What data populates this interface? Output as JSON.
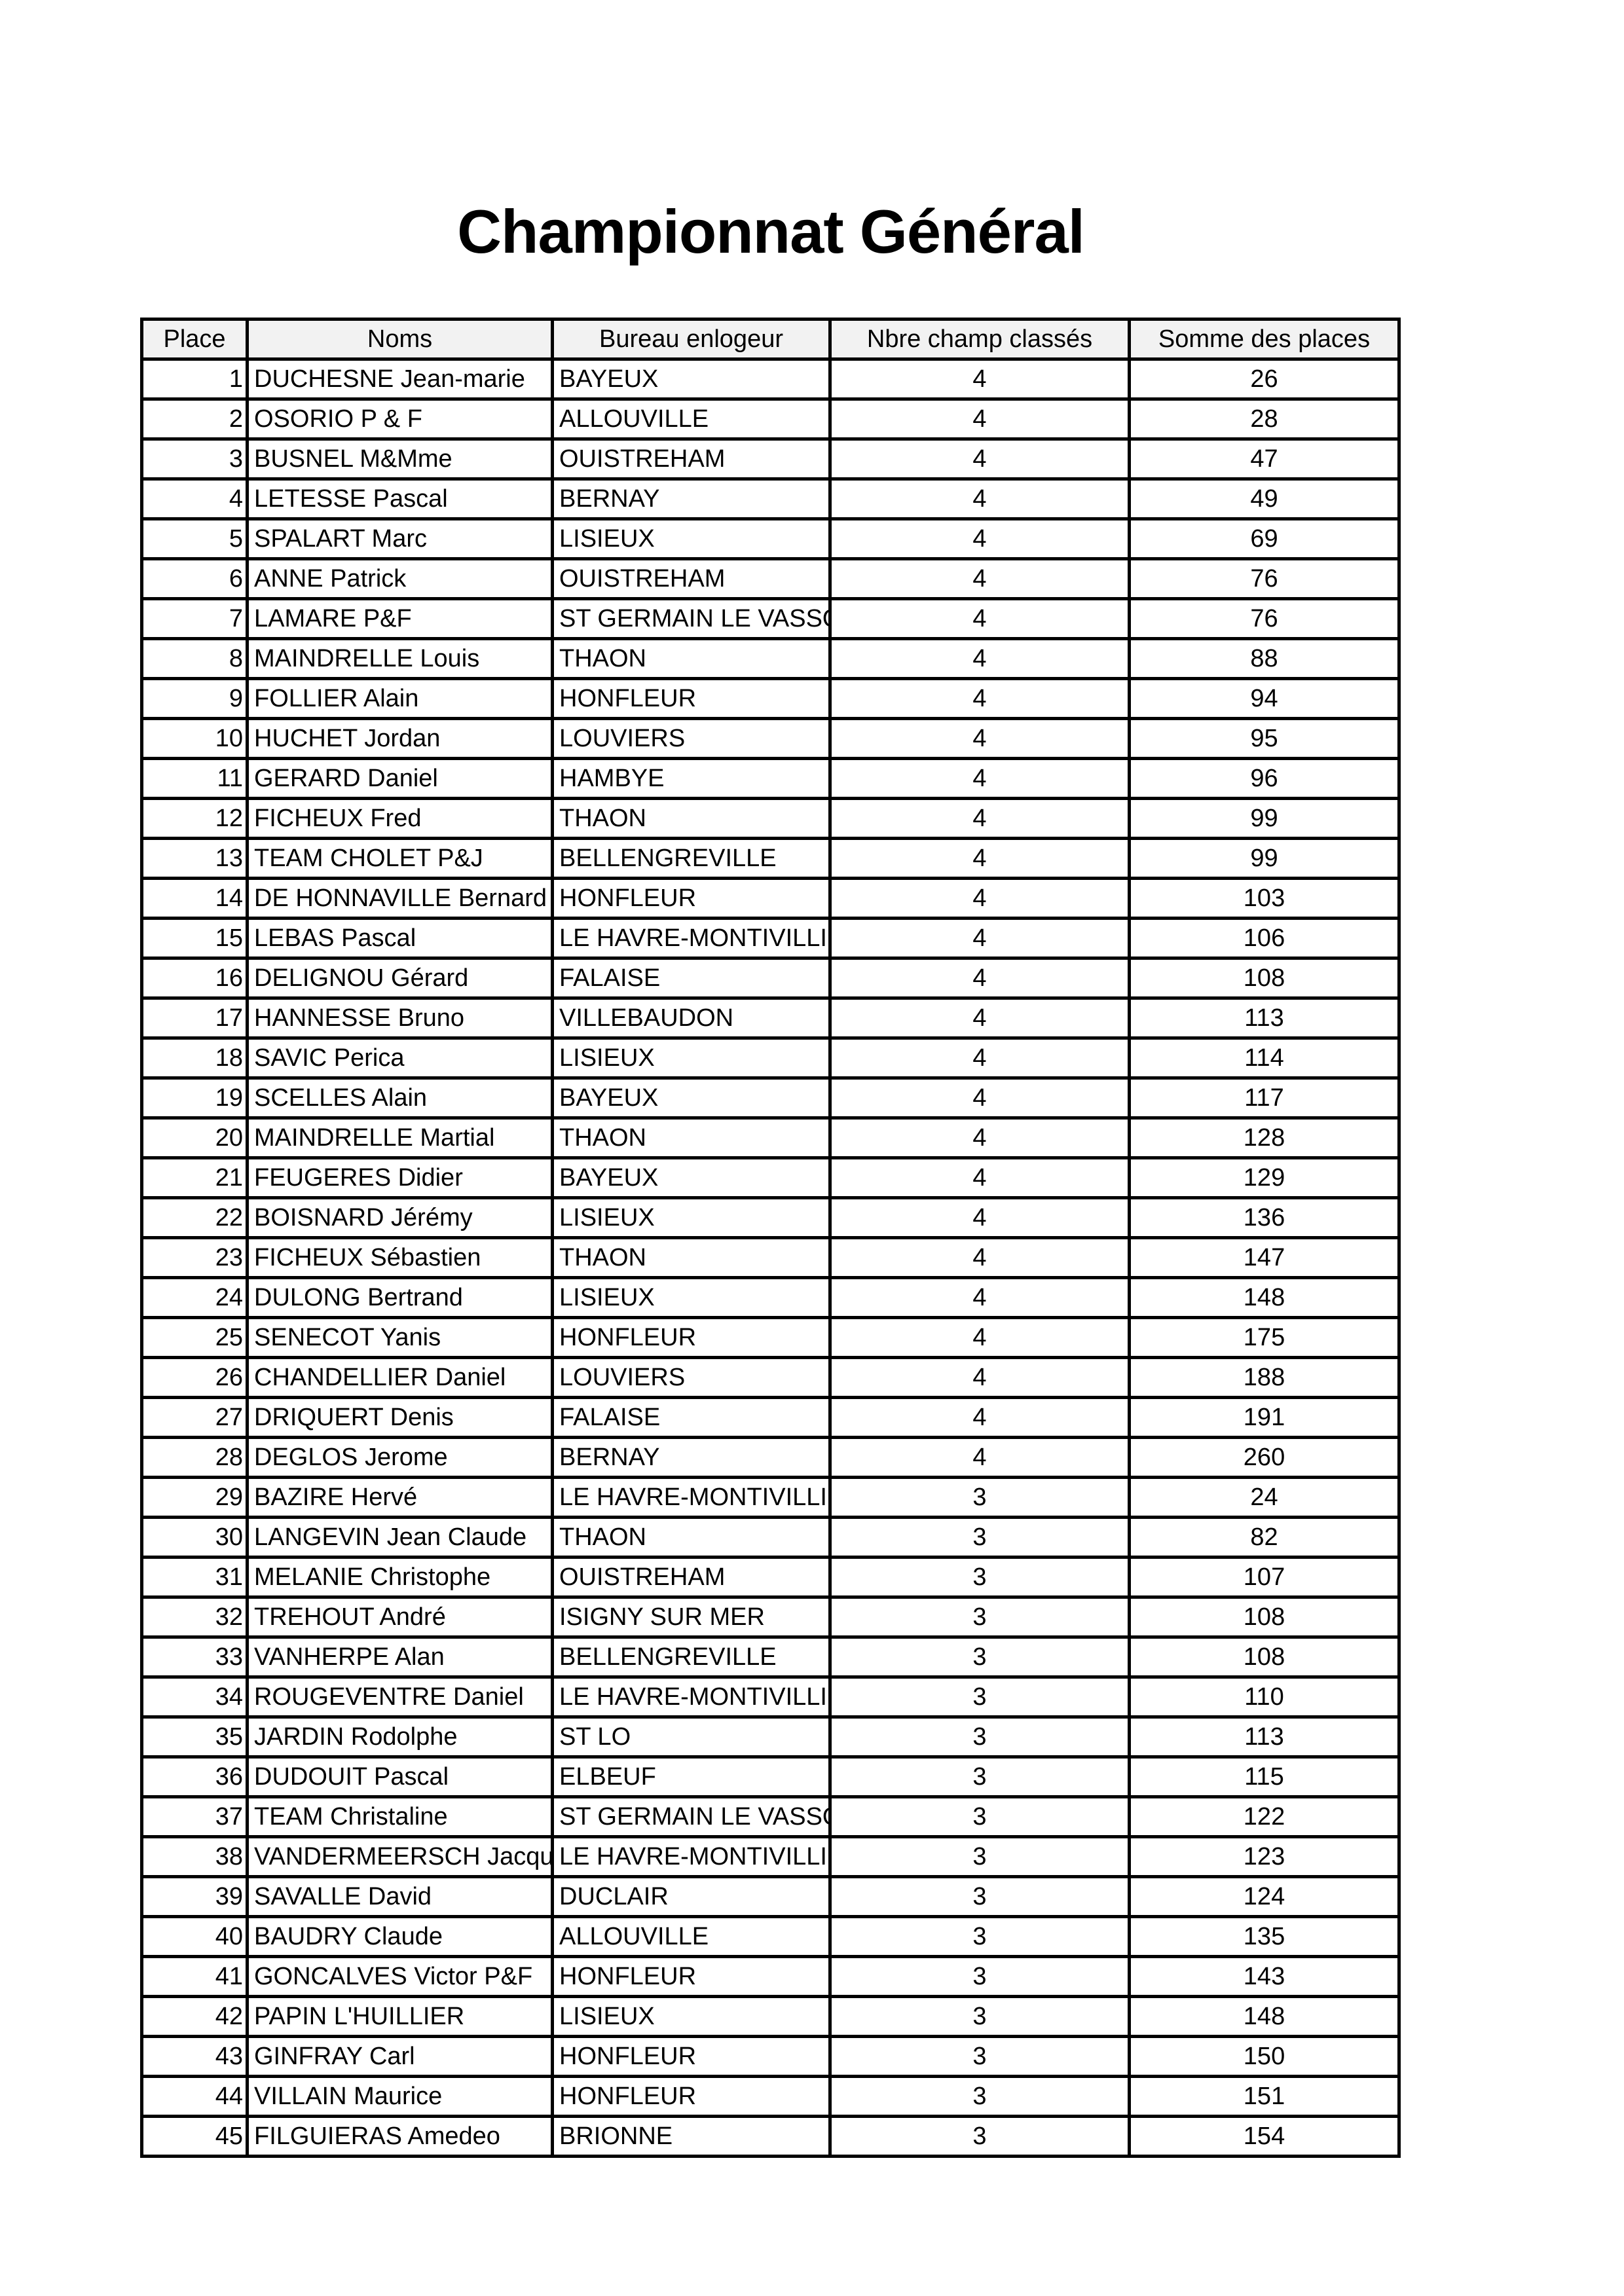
{
  "title": "Championnat Général",
  "columns": [
    "Place",
    "Noms",
    "Bureau enlogeur",
    "Nbre champ classés",
    "Somme des places"
  ],
  "rows": [
    [
      "1",
      "DUCHESNE Jean-marie",
      "BAYEUX",
      "4",
      "26"
    ],
    [
      "2",
      "OSORIO P & F",
      "ALLOUVILLE",
      "4",
      "28"
    ],
    [
      "3",
      "BUSNEL M&Mme",
      "OUISTREHAM",
      "4",
      "47"
    ],
    [
      "4",
      "LETESSE Pascal",
      "BERNAY",
      "4",
      "49"
    ],
    [
      "5",
      "SPALART Marc",
      "LISIEUX",
      "4",
      "69"
    ],
    [
      "6",
      "ANNE Patrick",
      "OUISTREHAM",
      "4",
      "76"
    ],
    [
      "7",
      "LAMARE P&F",
      "ST GERMAIN LE VASSO",
      "4",
      "76"
    ],
    [
      "8",
      "MAINDRELLE Louis",
      "THAON",
      "4",
      "88"
    ],
    [
      "9",
      "FOLLIER Alain",
      "HONFLEUR",
      "4",
      "94"
    ],
    [
      "10",
      "HUCHET Jordan",
      "LOUVIERS",
      "4",
      "95"
    ],
    [
      "11",
      "GERARD Daniel",
      "HAMBYE",
      "4",
      "96"
    ],
    [
      "12",
      "FICHEUX Fred",
      "THAON",
      "4",
      "99"
    ],
    [
      "13",
      "TEAM CHOLET P&J",
      "BELLENGREVILLE",
      "4",
      "99"
    ],
    [
      "14",
      "DE HONNAVILLE Bernard",
      "HONFLEUR",
      "4",
      "103"
    ],
    [
      "15",
      "LEBAS Pascal",
      "LE HAVRE-MONTIVILLI",
      "4",
      "106"
    ],
    [
      "16",
      "DELIGNOU  Gérard",
      "FALAISE",
      "4",
      "108"
    ],
    [
      "17",
      "HANNESSE Bruno",
      "VILLEBAUDON",
      "4",
      "113"
    ],
    [
      "18",
      "SAVIC Perica",
      "LISIEUX",
      "4",
      "114"
    ],
    [
      "19",
      "SCELLES Alain",
      "BAYEUX",
      "4",
      "117"
    ],
    [
      "20",
      "MAINDRELLE Martial",
      "THAON",
      "4",
      "128"
    ],
    [
      "21",
      "FEUGERES Didier",
      "BAYEUX",
      "4",
      "129"
    ],
    [
      "22",
      "BOISNARD Jérémy",
      "LISIEUX",
      "4",
      "136"
    ],
    [
      "23",
      "FICHEUX Sébastien",
      "THAON",
      "4",
      "147"
    ],
    [
      "24",
      "DULONG Bertrand",
      "LISIEUX",
      "4",
      "148"
    ],
    [
      "25",
      "SENECOT Yanis",
      "HONFLEUR",
      "4",
      "175"
    ],
    [
      "26",
      "CHANDELLIER Daniel",
      "LOUVIERS",
      "4",
      "188"
    ],
    [
      "27",
      "DRIQUERT Denis",
      "FALAISE",
      "4",
      "191"
    ],
    [
      "28",
      "DEGLOS Jerome",
      "BERNAY",
      "4",
      "260"
    ],
    [
      "29",
      "BAZIRE Hervé",
      "LE HAVRE-MONTIVILLI",
      "3",
      "24"
    ],
    [
      "30",
      "LANGEVIN Jean Claude",
      "THAON",
      "3",
      "82"
    ],
    [
      "31",
      "MELANIE Christophe",
      "OUISTREHAM",
      "3",
      "107"
    ],
    [
      "32",
      "TREHOUT André",
      "ISIGNY SUR MER",
      "3",
      "108"
    ],
    [
      "33",
      "VANHERPE Alan",
      "BELLENGREVILLE",
      "3",
      "108"
    ],
    [
      "34",
      "ROUGEVENTRE Daniel",
      "LE HAVRE-MONTIVILLI",
      "3",
      "110"
    ],
    [
      "35",
      "JARDIN Rodolphe",
      "ST LO",
      "3",
      "113"
    ],
    [
      "36",
      "DUDOUIT Pascal",
      "ELBEUF",
      "3",
      "115"
    ],
    [
      "37",
      "TEAM Christaline",
      "ST GERMAIN LE VASSO",
      "3",
      "122"
    ],
    [
      "38",
      "VANDERMEERSCH Jacqu",
      "LE HAVRE-MONTIVILLI",
      "3",
      "123"
    ],
    [
      "39",
      "SAVALLE David",
      "DUCLAIR",
      "3",
      "124"
    ],
    [
      "40",
      "BAUDRY Claude",
      "ALLOUVILLE",
      "3",
      "135"
    ],
    [
      "41",
      "GONCALVES Victor P&F",
      "HONFLEUR",
      "3",
      "143"
    ],
    [
      "42",
      "PAPIN L'HUILLIER",
      "LISIEUX",
      "3",
      "148"
    ],
    [
      "43",
      "GINFRAY Carl",
      "HONFLEUR",
      "3",
      "150"
    ],
    [
      "44",
      "VILLAIN Maurice",
      "HONFLEUR",
      "3",
      "151"
    ],
    [
      "45",
      "FILGUIERAS Amedeo",
      "BRIONNE",
      "3",
      "154"
    ]
  ]
}
